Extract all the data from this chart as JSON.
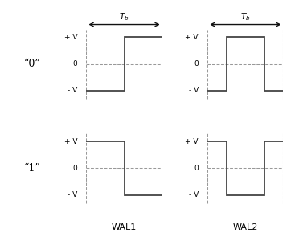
{
  "wal1_label": "WAL1",
  "wal2_label": "WAL2",
  "bit0_label": "“0”",
  "bit1_label": "“1”",
  "tb_label": "$T_b$",
  "plus_v": "+ V",
  "zero": "0",
  "minus_v": "- V",
  "bg_color": "#ffffff",
  "signal_color": "#444444",
  "dashed_color": "#999999",
  "arrow_color": "#111111",
  "panels": [
    {
      "signal": "wal1_0",
      "show_tb": true,
      "col": 0,
      "row": 0
    },
    {
      "signal": "wal1_1",
      "show_tb": false,
      "col": 0,
      "row": 1
    },
    {
      "signal": "wal2_0",
      "show_tb": true,
      "col": 1,
      "row": 0
    },
    {
      "signal": "wal2_1",
      "show_tb": false,
      "col": 1,
      "row": 1
    }
  ]
}
